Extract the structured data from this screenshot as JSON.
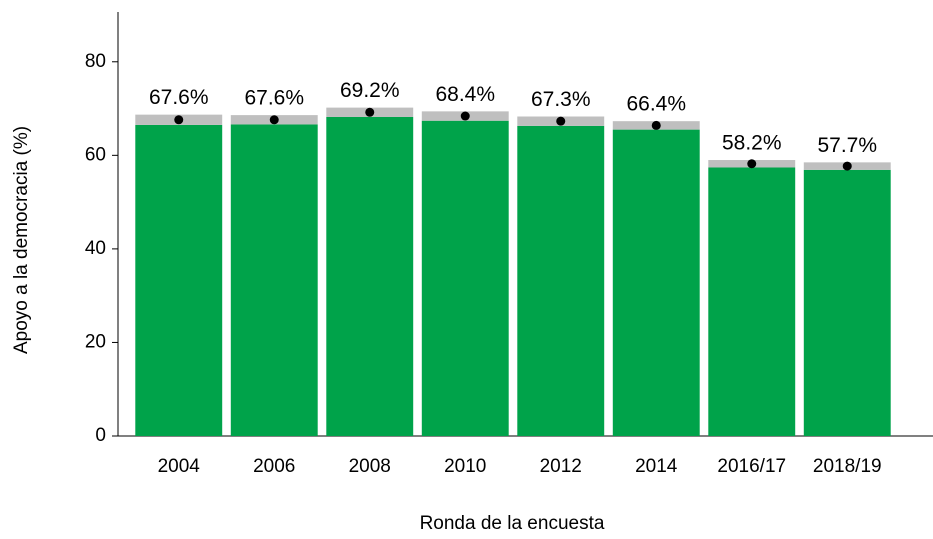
{
  "chart_data": {
    "type": "bar",
    "x_label": "Ronda de la encuesta",
    "y_label": "Apoyo a la democracia (%)",
    "categories": [
      "2004",
      "2006",
      "2008",
      "2010",
      "2012",
      "2014",
      "2016/17",
      "2018/19"
    ],
    "values": [
      67.6,
      67.6,
      69.2,
      68.4,
      67.3,
      66.4,
      58.2,
      57.7
    ],
    "value_labels": [
      "67.6%",
      "67.6%",
      "69.2%",
      "68.4%",
      "67.3%",
      "66.4%",
      "58.2%",
      "57.7%"
    ],
    "errors": [
      1.1,
      1.0,
      1.0,
      1.0,
      1.0,
      0.9,
      0.8,
      0.8
    ],
    "color": "#00a34a",
    "error_color": "#bfbfbf",
    "point_color": "#000000",
    "ylim": [
      0,
      90
    ],
    "yticks": [
      0,
      20,
      40,
      60,
      80
    ]
  }
}
